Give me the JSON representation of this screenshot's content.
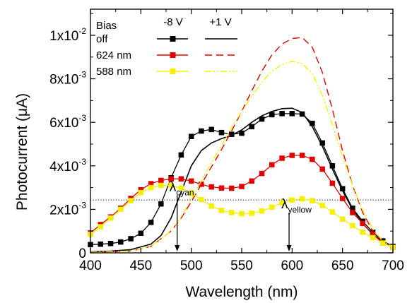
{
  "chart_data": {
    "type": "line",
    "xlabel": "Wavelength (nm)",
    "ylabel": "Photocurrent (μA)",
    "xlim": [
      400,
      700
    ],
    "ylim": [
      0,
      0.0112
    ],
    "x_ticks": [
      "400",
      "450",
      "500",
      "550",
      "600",
      "650",
      "700"
    ],
    "x_tick_values": [
      400,
      450,
      500,
      550,
      600,
      650,
      700
    ],
    "y_ticks": [
      {
        "value": 0,
        "mant": "0",
        "exp": ""
      },
      {
        "value": 0.002,
        "mant": "2x10",
        "exp": "-3"
      },
      {
        "value": 0.004,
        "mant": "4x10",
        "exp": "-3"
      },
      {
        "value": 0.006,
        "mant": "6x10",
        "exp": "-3"
      },
      {
        "value": 0.008,
        "mant": "8x10",
        "exp": "-3"
      },
      {
        "value": 0.01,
        "mant": "1x10",
        "exp": "-2"
      }
    ],
    "reference_line": {
      "y": 0.00243,
      "style": "dotted"
    },
    "legend": {
      "position": "top-left",
      "col_minus8": "-8 V",
      "col_plus1": "+1 V",
      "rows": [
        {
          "label_line1": "Bias",
          "label_line2": "off",
          "color": "#000000",
          "plus1_style": "solid"
        },
        {
          "label_line1": "624 nm",
          "label_line2": "",
          "color": "#e00000",
          "plus1_style": "dashed"
        },
        {
          "label_line1": "588 nm",
          "label_line2": "",
          "color": "#f5f000",
          "plus1_style": "dashdotdot"
        }
      ]
    },
    "annotations": [
      {
        "symbol": "λ",
        "sub": "cyan",
        "x": 486,
        "from_y": 0.0031,
        "to_y": 0.0
      },
      {
        "symbol": "λ",
        "sub": "yellow",
        "x": 597,
        "from_y": 0.0023,
        "to_y": 0.0
      }
    ],
    "series": [
      {
        "name": "Bias off -8 V",
        "color": "#000000",
        "style": "markers",
        "x": [
          400,
          410,
          420,
          430,
          440,
          450,
          460,
          470,
          480,
          490,
          500,
          510,
          520,
          530,
          540,
          550,
          560,
          570,
          580,
          590,
          600,
          610,
          620,
          630,
          640,
          650,
          660,
          670,
          680,
          690,
          700
        ],
        "y": [
          0.00038,
          0.0004,
          0.00043,
          0.0005,
          0.00065,
          0.0009,
          0.0014,
          0.00225,
          0.00345,
          0.0045,
          0.00535,
          0.0056,
          0.00567,
          0.00553,
          0.00545,
          0.0055,
          0.0058,
          0.00615,
          0.00635,
          0.0064,
          0.0064,
          0.00638,
          0.00595,
          0.00505,
          0.004,
          0.00295,
          0.00205,
          0.00145,
          0.00095,
          0.00055,
          0.0003
        ]
      },
      {
        "name": "Bias off +1 V",
        "color": "#000000",
        "style": "solid",
        "x": [
          400,
          420,
          440,
          460,
          470,
          480,
          490,
          500,
          510,
          520,
          530,
          540,
          550,
          560,
          570,
          580,
          590,
          600,
          610,
          620,
          630,
          640,
          650,
          660,
          670,
          680,
          690,
          700
        ],
        "y": [
          5e-05,
          8e-05,
          0.00015,
          0.0004,
          0.0008,
          0.0016,
          0.0028,
          0.004,
          0.0047,
          0.00505,
          0.00525,
          0.0054,
          0.00565,
          0.006,
          0.0063,
          0.0065,
          0.00663,
          0.00665,
          0.00645,
          0.0058,
          0.0049,
          0.00385,
          0.00285,
          0.002,
          0.00135,
          0.00085,
          0.0005,
          0.0003
        ]
      },
      {
        "name": "624 nm -8 V",
        "color": "#e00000",
        "style": "markers",
        "x": [
          400,
          410,
          420,
          430,
          440,
          450,
          460,
          470,
          480,
          490,
          500,
          510,
          520,
          530,
          540,
          550,
          560,
          570,
          580,
          590,
          600,
          610,
          620,
          630,
          640,
          650,
          660,
          670,
          680,
          690,
          700
        ],
        "y": [
          0.00092,
          0.0013,
          0.00165,
          0.00205,
          0.0025,
          0.0029,
          0.00318,
          0.00333,
          0.0034,
          0.0034,
          0.0033,
          0.00315,
          0.00303,
          0.00298,
          0.00297,
          0.00305,
          0.0033,
          0.00365,
          0.00405,
          0.00435,
          0.00448,
          0.00448,
          0.0043,
          0.00385,
          0.0032,
          0.0025,
          0.00185,
          0.00135,
          0.00085,
          0.00045,
          0.00025
        ]
      },
      {
        "name": "624 nm +1 V",
        "color": "#e00000",
        "style": "dashed",
        "x": [
          400,
          440,
          460,
          480,
          490,
          500,
          510,
          520,
          530,
          540,
          550,
          560,
          570,
          580,
          590,
          600,
          610,
          620,
          630,
          640,
          650,
          660,
          670,
          680,
          690,
          700
        ],
        "y": [
          3e-05,
          8e-05,
          0.0003,
          0.001,
          0.0016,
          0.00235,
          0.00315,
          0.00395,
          0.00475,
          0.0056,
          0.0065,
          0.00745,
          0.00835,
          0.0091,
          0.0096,
          0.00985,
          0.0099,
          0.00945,
          0.0083,
          0.0066,
          0.0047,
          0.0031,
          0.00185,
          0.001,
          0.0005,
          0.00025
        ]
      },
      {
        "name": "588 nm -8 V",
        "color": "#f5f000",
        "style": "markers",
        "x": [
          400,
          410,
          420,
          430,
          440,
          450,
          460,
          470,
          480,
          490,
          500,
          510,
          520,
          530,
          540,
          550,
          560,
          570,
          580,
          590,
          600,
          610,
          620,
          630,
          640,
          650,
          660,
          670,
          680,
          690,
          700
        ],
        "y": [
          0.00085,
          0.0012,
          0.0016,
          0.002,
          0.0024,
          0.00277,
          0.003,
          0.0031,
          0.0031,
          0.00298,
          0.00275,
          0.00245,
          0.00215,
          0.00195,
          0.00185,
          0.0018,
          0.00182,
          0.00192,
          0.0021,
          0.0023,
          0.00243,
          0.00248,
          0.0024,
          0.00218,
          0.00188,
          0.00155,
          0.00125,
          0.00095,
          0.0007,
          0.00045,
          0.00025
        ]
      },
      {
        "name": "588 nm +1 V",
        "color": "#f5f000",
        "style": "dashdotdot",
        "x": [
          400,
          440,
          460,
          480,
          490,
          500,
          510,
          520,
          530,
          540,
          550,
          560,
          570,
          580,
          590,
          600,
          610,
          620,
          630,
          640,
          650,
          660,
          670,
          680,
          690,
          700
        ],
        "y": [
          3e-05,
          8e-05,
          0.0003,
          0.001,
          0.00165,
          0.00245,
          0.0033,
          0.00415,
          0.00495,
          0.00575,
          0.0065,
          0.0072,
          0.00785,
          0.00835,
          0.00865,
          0.0088,
          0.0087,
          0.00825,
          0.00725,
          0.0059,
          0.00445,
          0.0031,
          0.00195,
          0.0011,
          0.00055,
          0.00025
        ]
      }
    ]
  }
}
